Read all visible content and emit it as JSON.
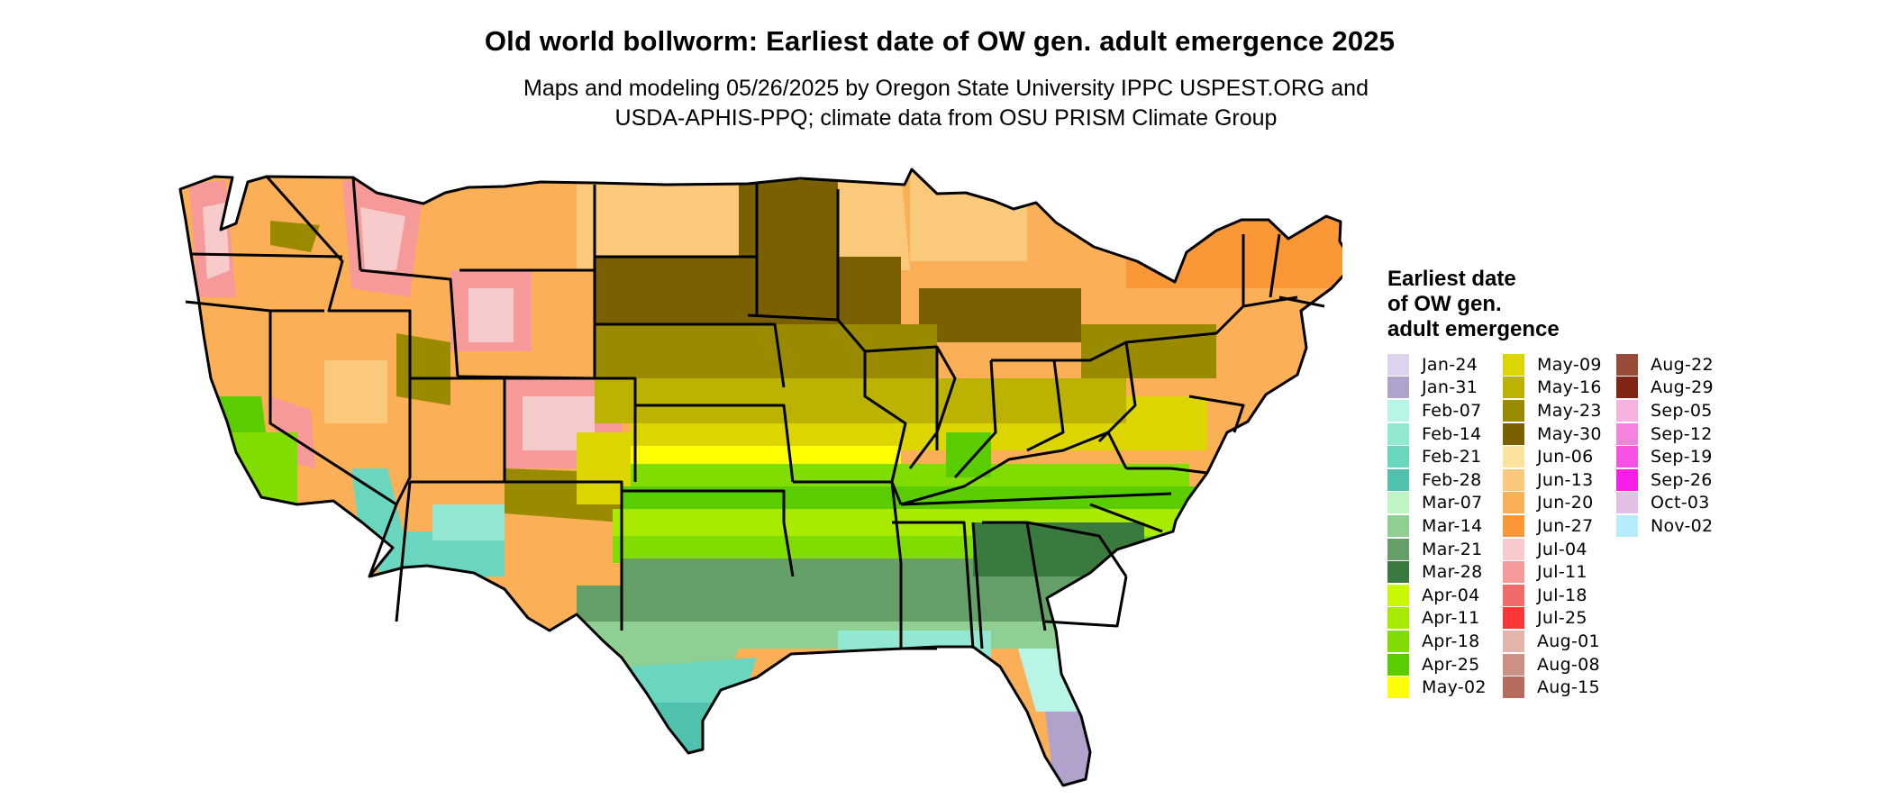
{
  "title": "Old world bollworm: Earliest date of OW gen. adult emergence 2025",
  "subtitle_line1": "Maps and modeling 05/26/2025 by Oregon State University IPPC USPEST.ORG and",
  "subtitle_line2": "USDA-APHIS-PPQ; climate data from OSU PRISM Climate Group",
  "legend": {
    "title_lines": [
      "Earliest date",
      "of OW gen.",
      "adult emergence"
    ],
    "columns": [
      [
        {
          "label": "Jan-24",
          "color": "#dcd3ec"
        },
        {
          "label": "Jan-31",
          "color": "#b0a2cb"
        },
        {
          "label": "Feb-07",
          "color": "#b9f5e6"
        },
        {
          "label": "Feb-14",
          "color": "#93e8d3"
        },
        {
          "label": "Feb-21",
          "color": "#6ad6c0"
        },
        {
          "label": "Feb-28",
          "color": "#4fc1ad"
        },
        {
          "label": "Mar-07",
          "color": "#bff5c4"
        },
        {
          "label": "Mar-14",
          "color": "#8fcf92"
        },
        {
          "label": "Mar-21",
          "color": "#639f66"
        },
        {
          "label": "Mar-28",
          "color": "#3b7a3f"
        },
        {
          "label": "Apr-04",
          "color": "#cbf700"
        },
        {
          "label": "Apr-11",
          "color": "#a8ea00"
        },
        {
          "label": "Apr-18",
          "color": "#81dc00"
        },
        {
          "label": "Apr-25",
          "color": "#5acd00"
        },
        {
          "label": "May-02",
          "color": "#ffff00"
        }
      ],
      [
        {
          "label": "May-09",
          "color": "#dcd500"
        },
        {
          "label": "May-16",
          "color": "#bcb200"
        },
        {
          "label": "May-23",
          "color": "#9a8a00"
        },
        {
          "label": "May-30",
          "color": "#7a6000"
        },
        {
          "label": "Jun-06",
          "color": "#fce39d"
        },
        {
          "label": "Jun-13",
          "color": "#fbc97c"
        },
        {
          "label": "Jun-20",
          "color": "#fbb057"
        },
        {
          "label": "Jun-27",
          "color": "#fa9737"
        },
        {
          "label": "Jul-04",
          "color": "#f7cacc"
        },
        {
          "label": "Jul-11",
          "color": "#f59999"
        },
        {
          "label": "Jul-18",
          "color": "#f06a6a"
        },
        {
          "label": "Jul-25",
          "color": "#ff3636"
        },
        {
          "label": "Aug-01",
          "color": "#e4b3a9"
        },
        {
          "label": "Aug-08",
          "color": "#cd9183"
        },
        {
          "label": "Aug-15",
          "color": "#b46c5c"
        }
      ],
      [
        {
          "label": "Aug-22",
          "color": "#9a4a38"
        },
        {
          "label": "Aug-29",
          "color": "#822414"
        },
        {
          "label": "Sep-05",
          "color": "#f7b3df"
        },
        {
          "label": "Sep-12",
          "color": "#f583de"
        },
        {
          "label": "Sep-19",
          "color": "#f551e2"
        },
        {
          "label": "Sep-26",
          "color": "#f61ee8"
        },
        {
          "label": "Oct-03",
          "color": "#e2c0e6"
        },
        {
          "label": "Nov-02",
          "color": "#b7ecfc"
        }
      ]
    ]
  },
  "map": {
    "region": "Contiguous United States",
    "state_border_color": "#000000",
    "colors": {
      "jan24": "#dcd3ec",
      "jan31": "#b0a2cb",
      "feb07": "#b9f5e6",
      "feb14": "#93e8d3",
      "feb21": "#6ad6c0",
      "feb28": "#4fc1ad",
      "mar07": "#bff5c4",
      "mar14": "#8fcf92",
      "mar21": "#639f66",
      "mar28": "#3b7a3f",
      "apr04": "#cbf700",
      "apr11": "#a8ea00",
      "apr18": "#81dc00",
      "apr25": "#5acd00",
      "may02": "#ffff00",
      "may09": "#dcd500",
      "may16": "#bcb200",
      "may23": "#9a8a00",
      "may30": "#7a6000",
      "jun06": "#fce39d",
      "jun13": "#fbc97c",
      "jun20": "#fbb057",
      "jun27": "#fa9737",
      "jul04": "#f7cacc",
      "jul11": "#f59999",
      "jul18": "#f06a6a"
    }
  }
}
